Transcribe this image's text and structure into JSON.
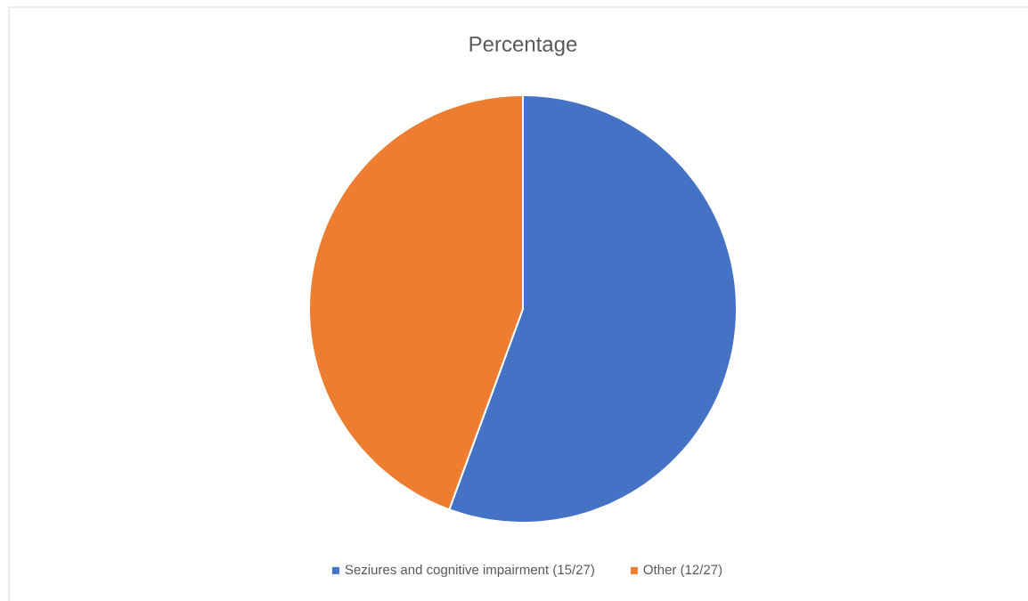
{
  "chart_data": {
    "type": "pie",
    "title": "Percentage",
    "categories": [
      "Seziures and cognitive impairment (15/27)",
      "Other (12/27)"
    ],
    "values": [
      55.6,
      44.4
    ],
    "colors": [
      "#4472c4",
      "#ed7d31"
    ],
    "legend": "bottom"
  }
}
